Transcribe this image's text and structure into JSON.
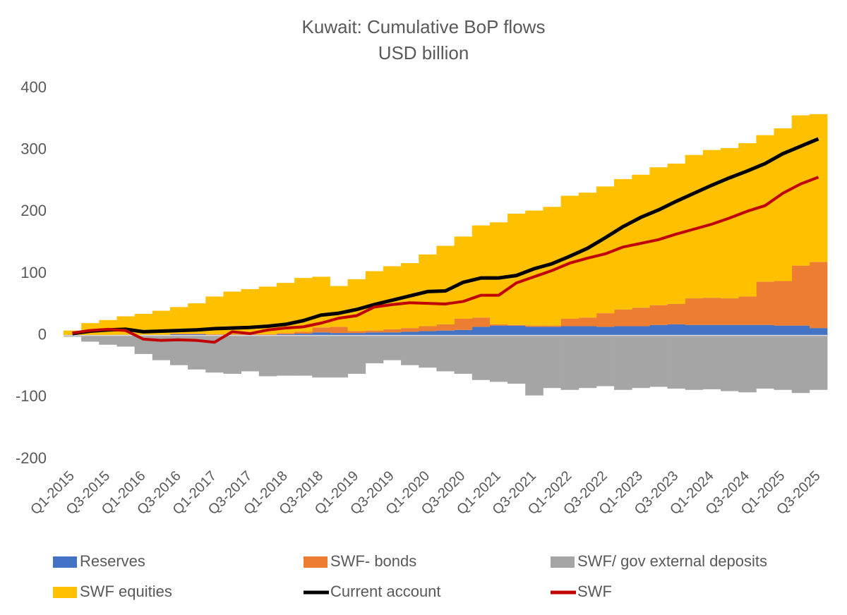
{
  "chart_data": {
    "type": "combo",
    "title": "Kuwait: Cumulative BoP flows",
    "subtitle": "USD billion",
    "categories": [
      "Q1-2015",
      null,
      "Q3-2015",
      null,
      "Q1-2016",
      null,
      "Q3-2016",
      null,
      "Q1-2017",
      null,
      "Q3-2017",
      null,
      "Q1-2018",
      null,
      "Q3-2018",
      null,
      "Q1-2019",
      null,
      "Q3-2019",
      null,
      "Q1-2020",
      null,
      "Q3-2020",
      null,
      "Q1-2021",
      null,
      "Q3-2021",
      null,
      "Q1-2022",
      null,
      "Q3-2022",
      null,
      "Q1-2023",
      null,
      "Q3-2023",
      null,
      "Q1-2024",
      null,
      "Q3-2024",
      null,
      "Q1-2025",
      null,
      "Q3-2025"
    ],
    "series": [
      {
        "name": "Reserves",
        "type": "bar",
        "color": "#4472c4",
        "values": [
          0,
          0,
          0,
          1,
          1,
          1,
          2,
          2,
          1,
          1,
          1,
          1,
          2,
          3,
          5,
          4,
          4,
          5,
          5,
          6,
          7,
          8,
          9,
          14,
          16,
          16,
          14,
          14,
          15,
          15,
          14,
          15,
          15,
          17,
          18,
          17,
          17,
          17,
          17,
          17,
          16,
          16,
          12
        ]
      },
      {
        "name": "SWF- bonds",
        "type": "bar",
        "color": "#ed7d31",
        "values": [
          0,
          0,
          0,
          0,
          0,
          0,
          1,
          1,
          1,
          1,
          1,
          1,
          2,
          3,
          8,
          10,
          3,
          3,
          5,
          6,
          8,
          10,
          18,
          15,
          2,
          1,
          2,
          2,
          12,
          14,
          22,
          27,
          30,
          32,
          33,
          43,
          44,
          43,
          46,
          70,
          72,
          97,
          107
        ]
      },
      {
        "name": "SWF/ gov external deposits",
        "type": "bar",
        "color": "#a5a5a5",
        "values": [
          -2,
          -10,
          -15,
          -18,
          -30,
          -40,
          -48,
          -55,
          -60,
          -62,
          -58,
          -66,
          -65,
          -65,
          -68,
          -68,
          -62,
          -45,
          -40,
          -48,
          -52,
          -58,
          -62,
          -72,
          -75,
          -78,
          -97,
          -85,
          -88,
          -85,
          -82,
          -88,
          -85,
          -83,
          -86,
          -88,
          -87,
          -90,
          -92,
          -86,
          -88,
          -93,
          -88
        ]
      },
      {
        "name": "SWF equities",
        "type": "bar",
        "color": "#ffc000",
        "values": [
          8,
          20,
          25,
          30,
          34,
          39,
          43,
          49,
          61,
          69,
          73,
          77,
          81,
          87,
          82,
          66,
          84,
          96,
          102,
          105,
          116,
          127,
          133,
          149,
          165,
          180,
          186,
          192,
          199,
          202,
          205,
          211,
          215,
          223,
          227,
          232,
          239,
          243,
          248,
          237,
          247,
          243,
          239
        ]
      },
      {
        "name": "Current account",
        "type": "line",
        "color": "#000000",
        "values": [
          3,
          7,
          9,
          10,
          6,
          7,
          8,
          9,
          11,
          12,
          13,
          15,
          18,
          24,
          33,
          36,
          42,
          50,
          57,
          64,
          71,
          72,
          86,
          93,
          93,
          97,
          108,
          116,
          128,
          141,
          158,
          176,
          191,
          203,
          217,
          230,
          243,
          255,
          266,
          278,
          294,
          306,
          318
        ]
      },
      {
        "name": "SWF",
        "type": "line",
        "color": "#c00000",
        "values": [
          4,
          8,
          10,
          8,
          -6,
          -8,
          -7,
          -8,
          -11,
          6,
          3,
          9,
          12,
          14,
          20,
          28,
          32,
          46,
          50,
          53,
          52,
          51,
          55,
          65,
          65,
          85,
          95,
          105,
          117,
          125,
          132,
          143,
          149,
          155,
          164,
          172,
          180,
          190,
          201,
          210,
          230,
          245,
          256
        ]
      }
    ],
    "ylim": [
      -200,
      400
    ],
    "yticks": [
      -200,
      -100,
      0,
      100,
      200,
      300,
      400
    ]
  }
}
